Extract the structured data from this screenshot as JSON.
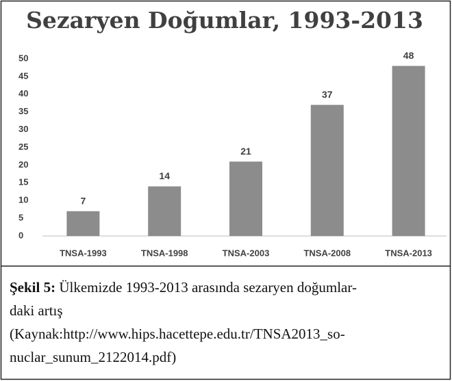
{
  "chart_data": {
    "type": "bar",
    "title": "Sezaryen Doğumlar, 1993-2013",
    "categories": [
      "TNSA-1993",
      "TNSA-1998",
      "TNSA-2003",
      "TNSA-2008",
      "TNSA-2013"
    ],
    "values": [
      7,
      14,
      21,
      37,
      48
    ],
    "color": "#8c8c8c",
    "ylim": [
      0,
      50
    ],
    "yticks": [
      0,
      5,
      10,
      15,
      20,
      25,
      30,
      35,
      40,
      45,
      50
    ],
    "grid": false
  },
  "caption": {
    "label": "Şekil 5:",
    "lines": [
      "Ülkemizde 1993-2013 arasında sezaryen doğumlar-",
      "daki artış",
      "(Kaynak:http://www.hips.hacettepe.edu.tr/TNSA2013_so-",
      "nuclar_sunum_2122014.pdf)"
    ]
  }
}
